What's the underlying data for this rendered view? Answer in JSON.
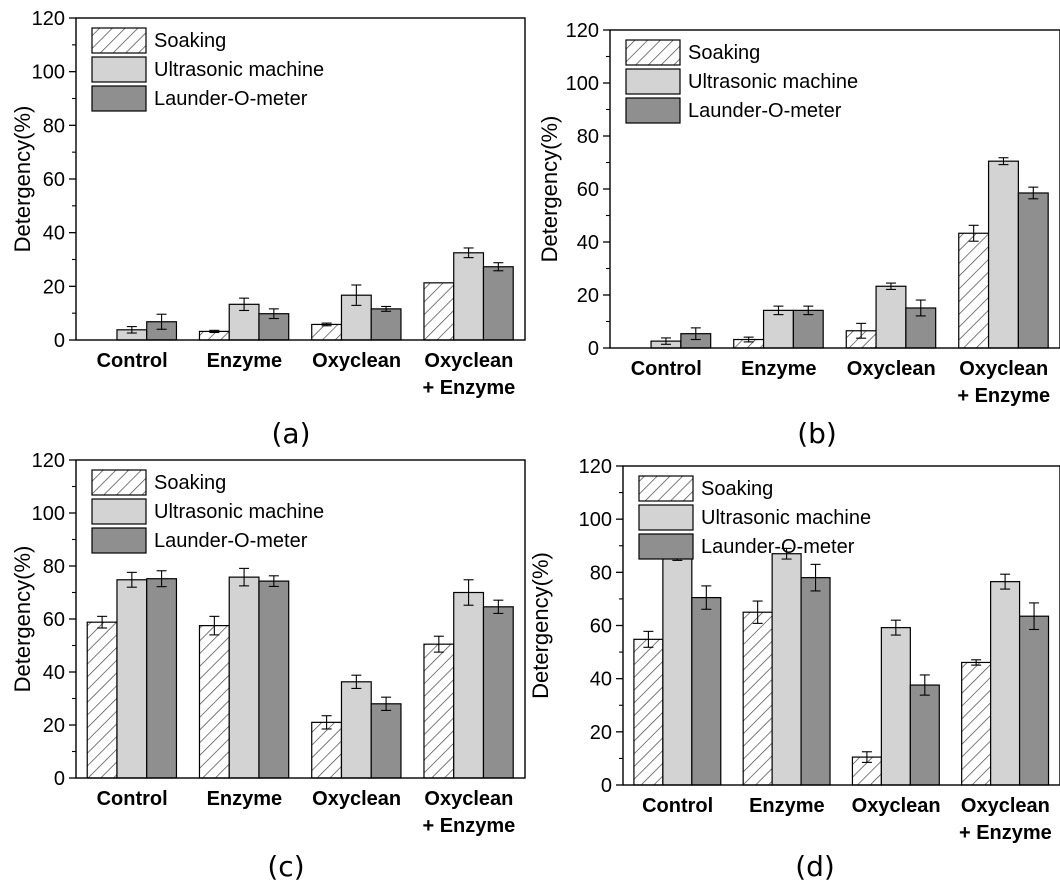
{
  "figure": {
    "colors": {
      "Soaking": "#ffffff",
      "Ultrasonic machine": "#d3d3d3",
      "Launder-O-meter": "#8f8f8f",
      "hatch": "#444444",
      "axis": "#000000"
    }
  },
  "chart_data": [
    {
      "type": "bar",
      "panel_label": "(a)",
      "categories": [
        [
          "Control"
        ],
        [
          "Enzyme"
        ],
        [
          "Oxyclean"
        ],
        [
          "Oxyclean",
          "+ Enzyme"
        ]
      ],
      "ylabel": "Detergency(%)",
      "xlabel": "",
      "ylim": [
        0,
        120
      ],
      "yticks": [
        0,
        20,
        40,
        60,
        80,
        100,
        120
      ],
      "legend_position": "top-left",
      "series": [
        {
          "name": "Soaking",
          "pattern": "hatch",
          "values": [
            0,
            3.2,
            5.8,
            21.3
          ],
          "errors": [
            0,
            0.4,
            0.5,
            0
          ]
        },
        {
          "name": "Ultrasonic machine",
          "values": [
            3.8,
            13.3,
            16.7,
            32.5
          ],
          "errors": [
            1.2,
            2.3,
            3.8,
            1.8
          ]
        },
        {
          "name": "Launder-O-meter",
          "values": [
            6.8,
            9.8,
            11.6,
            27.3
          ],
          "errors": [
            2.8,
            1.8,
            0.9,
            1.5
          ]
        }
      ]
    },
    {
      "type": "bar",
      "panel_label": "(b)",
      "categories": [
        [
          "Control"
        ],
        [
          "Enzyme"
        ],
        [
          "Oxyclean"
        ],
        [
          "Oxyclean",
          "+ Enzyme"
        ]
      ],
      "ylabel": "Detergency(%)",
      "xlabel": "",
      "ylim": [
        0,
        120
      ],
      "yticks": [
        0,
        20,
        40,
        60,
        80,
        100,
        120
      ],
      "legend_position": "top-left",
      "series": [
        {
          "name": "Soaking",
          "pattern": "hatch",
          "values": [
            0,
            3.2,
            6.5,
            43.3
          ],
          "errors": [
            0,
            0.9,
            2.8,
            3.0
          ]
        },
        {
          "name": "Ultrasonic machine",
          "values": [
            2.6,
            14.2,
            23.3,
            70.5
          ],
          "errors": [
            1.2,
            1.6,
            1.2,
            1.3
          ]
        },
        {
          "name": "Launder-O-meter",
          "values": [
            5.4,
            14.2,
            15.1,
            58.5
          ],
          "errors": [
            2.2,
            1.6,
            3.0,
            2.2
          ]
        }
      ]
    },
    {
      "type": "bar",
      "panel_label": "(c)",
      "categories": [
        [
          "Control"
        ],
        [
          "Enzyme"
        ],
        [
          "Oxyclean"
        ],
        [
          "Oxyclean",
          "+ Enzyme"
        ]
      ],
      "ylabel": "Detergency(%)",
      "xlabel": "",
      "ylim": [
        0,
        120
      ],
      "yticks": [
        0,
        20,
        40,
        60,
        80,
        100,
        120
      ],
      "legend_position": "top-left",
      "series": [
        {
          "name": "Soaking",
          "pattern": "hatch",
          "values": [
            58.8,
            57.5,
            21.0,
            50.5
          ],
          "errors": [
            2.2,
            3.5,
            2.5,
            3.0
          ]
        },
        {
          "name": "Ultrasonic machine",
          "values": [
            74.8,
            75.8,
            36.3,
            70.0
          ],
          "errors": [
            2.8,
            3.3,
            2.5,
            4.8
          ]
        },
        {
          "name": "Launder-O-meter",
          "values": [
            75.2,
            74.3,
            28.0,
            64.6
          ],
          "errors": [
            3.0,
            2.0,
            2.5,
            2.5
          ]
        }
      ]
    },
    {
      "type": "bar",
      "panel_label": "(d)",
      "categories": [
        [
          "Control"
        ],
        [
          "Enzyme"
        ],
        [
          "Oxyclean"
        ],
        [
          "Oxyclean",
          "+ Enzyme"
        ]
      ],
      "ylabel": "Detergency(%)",
      "xlabel": "",
      "ylim": [
        0,
        120
      ],
      "yticks": [
        0,
        20,
        40,
        60,
        80,
        100,
        120
      ],
      "legend_position": "top-left",
      "series": [
        {
          "name": "Soaking",
          "pattern": "hatch",
          "values": [
            54.8,
            65.0,
            10.5,
            46.1
          ],
          "errors": [
            3.0,
            4.2,
            2.0,
            1.0
          ]
        },
        {
          "name": "Ultrasonic machine",
          "values": [
            85.5,
            87.0,
            59.2,
            76.5
          ],
          "errors": [
            1.0,
            2.0,
            2.8,
            2.8
          ]
        },
        {
          "name": "Launder-O-meter",
          "values": [
            70.5,
            78.0,
            37.6,
            63.5
          ],
          "errors": [
            4.4,
            5.0,
            3.8,
            5.0
          ]
        }
      ]
    }
  ]
}
